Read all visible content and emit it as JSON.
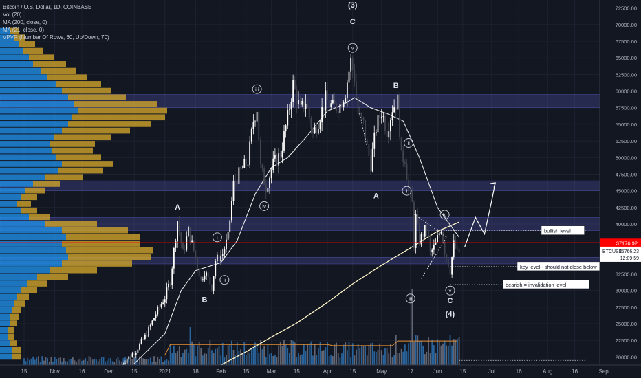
{
  "header": {
    "symbol_title": "Bitcoin / U.S. Dollar, 1D, COINBASE",
    "indicators": [
      "Vol (20)",
      "MA (200, close, 0)",
      "MA (21, close, 0)",
      "VPVR (Number Of Rows, 60, Up/Down, 70)"
    ]
  },
  "colors": {
    "background": "#131722",
    "up_candle": "#ffffff",
    "down_candle": "#434651",
    "price_line": "#ff0000",
    "vpvr_up": "#2196f3",
    "vpvr_down": "#d4a72c",
    "zone": "#5b5fc7",
    "ma_line": "#ffffff",
    "vol_ma": "#e58e32"
  },
  "chart_data": {
    "type": "candlestick",
    "y_axis": {
      "ticks": [
        20000,
        22500,
        25000,
        27500,
        30000,
        32500,
        35000,
        37500,
        40000,
        42500,
        45000,
        47500,
        50000,
        52500,
        55000,
        57500,
        60000,
        62500,
        65000,
        67500,
        70000,
        72500
      ],
      "tick_labels": [
        "20000.00",
        "22500.00",
        "25000.00",
        "27500.00",
        "30000.00",
        "32500.00",
        "35000.00",
        "37500.00",
        "40000.00",
        "42500.00",
        "45000.00",
        "47500.00",
        "50000.00",
        "52500.00",
        "55000.00",
        "57500.00",
        "60000.00",
        "62500.00",
        "65000.00",
        "67500.00",
        "70000.00",
        "72500.00"
      ],
      "range": [
        18800,
        73500
      ]
    },
    "x_axis": {
      "ticks": [
        {
          "label": "15",
          "date": "2020-10-15"
        },
        {
          "label": "Nov",
          "date": "2020-11-01"
        },
        {
          "label": "16",
          "date": "2020-11-16"
        },
        {
          "label": "Dec",
          "date": "2020-12-01"
        },
        {
          "label": "15",
          "date": "2020-12-15"
        },
        {
          "label": "2021",
          "date": "2021-01-01"
        },
        {
          "label": "18",
          "date": "2021-01-18"
        },
        {
          "label": "Feb",
          "date": "2021-02-01"
        },
        {
          "label": "15",
          "date": "2021-02-15"
        },
        {
          "label": "Mar",
          "date": "2021-03-01"
        },
        {
          "label": "15",
          "date": "2021-03-15"
        },
        {
          "label": "Apr",
          "date": "2021-04-01"
        },
        {
          "label": "15",
          "date": "2021-04-15"
        },
        {
          "label": "May",
          "date": "2021-05-01"
        },
        {
          "label": "17",
          "date": "2021-05-17"
        },
        {
          "label": "Jun",
          "date": "2021-06-01"
        },
        {
          "label": "15",
          "date": "2021-06-15"
        },
        {
          "label": "Jul",
          "date": "2021-07-01"
        },
        {
          "label": "16",
          "date": "2021-07-16"
        },
        {
          "label": "Aug",
          "date": "2021-08-01"
        },
        {
          "label": "16",
          "date": "2021-08-16"
        },
        {
          "label": "Sep",
          "date": "2021-09-01"
        }
      ]
    },
    "price_path": [
      {
        "date": "2020-12-08",
        "price": 18900
      },
      {
        "date": "2020-12-16",
        "price": 21000
      },
      {
        "date": "2020-12-22",
        "price": 23500
      },
      {
        "date": "2020-12-27",
        "price": 26500
      },
      {
        "date": "2021-01-01",
        "price": 29000
      },
      {
        "date": "2021-01-04",
        "price": 31500
      },
      {
        "date": "2021-01-08",
        "price": 40500
      },
      {
        "date": "2021-01-11",
        "price": 35500
      },
      {
        "date": "2021-01-14",
        "price": 39000
      },
      {
        "date": "2021-01-17",
        "price": 36000
      },
      {
        "date": "2021-01-21",
        "price": 31500
      },
      {
        "date": "2021-01-23",
        "price": 33000
      },
      {
        "date": "2021-01-27",
        "price": 30500
      },
      {
        "date": "2021-01-29",
        "price": 34500
      },
      {
        "date": "2021-02-02",
        "price": 35500
      },
      {
        "date": "2021-02-05",
        "price": 38000
      },
      {
        "date": "2021-02-08",
        "price": 46000
      },
      {
        "date": "2021-02-12",
        "price": 48000
      },
      {
        "date": "2021-02-16",
        "price": 49500
      },
      {
        "date": "2021-02-19",
        "price": 55500
      },
      {
        "date": "2021-02-21",
        "price": 57500
      },
      {
        "date": "2021-02-23",
        "price": 48500
      },
      {
        "date": "2021-02-26",
        "price": 45500
      },
      {
        "date": "2021-03-02",
        "price": 49000
      },
      {
        "date": "2021-03-06",
        "price": 50500
      },
      {
        "date": "2021-03-10",
        "price": 56000
      },
      {
        "date": "2021-03-13",
        "price": 61000
      },
      {
        "date": "2021-03-17",
        "price": 57000
      },
      {
        "date": "2021-03-20",
        "price": 58500
      },
      {
        "date": "2021-03-24",
        "price": 53500
      },
      {
        "date": "2021-03-27",
        "price": 55500
      },
      {
        "date": "2021-03-31",
        "price": 58800
      },
      {
        "date": "2021-04-04",
        "price": 57500
      },
      {
        "date": "2021-04-08",
        "price": 58000
      },
      {
        "date": "2021-04-11",
        "price": 60000
      },
      {
        "date": "2021-04-14",
        "price": 64500
      },
      {
        "date": "2021-04-16",
        "price": 62000
      },
      {
        "date": "2021-04-18",
        "price": 56500
      },
      {
        "date": "2021-04-21",
        "price": 55000
      },
      {
        "date": "2021-04-23",
        "price": 51500
      },
      {
        "date": "2021-04-25",
        "price": 49000
      },
      {
        "date": "2021-04-28",
        "price": 54500
      },
      {
        "date": "2021-05-01",
        "price": 57000
      },
      {
        "date": "2021-05-04",
        "price": 54000
      },
      {
        "date": "2021-05-07",
        "price": 57500
      },
      {
        "date": "2021-05-10",
        "price": 58500
      },
      {
        "date": "2021-05-12",
        "price": 50000
      },
      {
        "date": "2021-05-14",
        "price": 50000
      },
      {
        "date": "2021-05-16",
        "price": 45000
      },
      {
        "date": "2021-05-18",
        "price": 43000
      },
      {
        "date": "2021-05-19",
        "price": 37000
      },
      {
        "date": "2021-05-20",
        "price": 41000
      },
      {
        "date": "2021-05-22",
        "price": 37500
      },
      {
        "date": "2021-05-24",
        "price": 38500
      },
      {
        "date": "2021-05-26",
        "price": 39500
      },
      {
        "date": "2021-05-28",
        "price": 35500
      },
      {
        "date": "2021-05-31",
        "price": 37000
      },
      {
        "date": "2021-06-03",
        "price": 39500
      },
      {
        "date": "2021-06-05",
        "price": 36000
      },
      {
        "date": "2021-06-08",
        "price": 33000
      },
      {
        "date": "2021-06-10",
        "price": 37000
      },
      {
        "date": "2021-06-12",
        "price": 35600
      },
      {
        "date": "2021-06-13",
        "price": 35766
      }
    ],
    "ma200": [
      {
        "date": "2021-02-01",
        "price": 18800
      },
      {
        "date": "2021-02-15",
        "price": 20800
      },
      {
        "date": "2021-03-01",
        "price": 23000
      },
      {
        "date": "2021-03-15",
        "price": 25100
      },
      {
        "date": "2021-04-01",
        "price": 28200
      },
      {
        "date": "2021-04-15",
        "price": 31000
      },
      {
        "date": "2021-05-01",
        "price": 33800
      },
      {
        "date": "2021-05-17",
        "price": 36400
      },
      {
        "date": "2021-06-01",
        "price": 38900
      },
      {
        "date": "2021-06-13",
        "price": 40300
      }
    ],
    "ma21": [
      {
        "date": "2020-12-15",
        "price": 19000
      },
      {
        "date": "2021-01-01",
        "price": 23500
      },
      {
        "date": "2021-01-10",
        "price": 30000
      },
      {
        "date": "2021-01-18",
        "price": 33000
      },
      {
        "date": "2021-02-01",
        "price": 34200
      },
      {
        "date": "2021-02-10",
        "price": 37500
      },
      {
        "date": "2021-02-20",
        "price": 44500
      },
      {
        "date": "2021-03-01",
        "price": 48500
      },
      {
        "date": "2021-03-10",
        "price": 50000
      },
      {
        "date": "2021-03-20",
        "price": 53000
      },
      {
        "date": "2021-04-01",
        "price": 57000
      },
      {
        "date": "2021-04-10",
        "price": 58000
      },
      {
        "date": "2021-04-16",
        "price": 59000
      },
      {
        "date": "2021-04-25",
        "price": 57500
      },
      {
        "date": "2021-05-05",
        "price": 56500
      },
      {
        "date": "2021-05-13",
        "price": 55500
      },
      {
        "date": "2021-05-22",
        "price": 50000
      },
      {
        "date": "2021-06-01",
        "price": 42500
      },
      {
        "date": "2021-06-13",
        "price": 38000
      }
    ],
    "zones": [
      {
        "low": 57500,
        "high": 59500
      },
      {
        "low": 45000,
        "high": 46500
      },
      {
        "low": 39000,
        "high": 41000
      },
      {
        "low": 34000,
        "high": 35000
      }
    ],
    "current_price": {
      "value": 37176.92,
      "label": "37176.92"
    },
    "price_tag": {
      "symbol": "BTCUSD",
      "value": "35766.23",
      "countdown": "12:09:59",
      "price": 35766
    },
    "wave_labels": [
      {
        "text": "(3)",
        "date": "2021-04-15",
        "price": 73000
      },
      {
        "text": "C",
        "date": "2021-04-15",
        "price": 70500
      },
      {
        "text": "v",
        "date": "2021-04-15",
        "price": 66500,
        "circled": true
      },
      {
        "text": "B",
        "date": "2021-05-09",
        "price": 60900
      },
      {
        "text": "iii",
        "date": "2021-02-21",
        "price": 60300,
        "circled": true
      },
      {
        "text": "ii",
        "date": "2021-05-16",
        "price": 52200,
        "circled": true
      },
      {
        "text": "i",
        "date": "2021-05-15",
        "price": 45000,
        "circled": true
      },
      {
        "text": "A",
        "date": "2021-04-28",
        "price": 44300
      },
      {
        "text": "iv",
        "date": "2021-02-25",
        "price": 42700,
        "circled": true
      },
      {
        "text": "A",
        "date": "2021-01-08",
        "price": 42600
      },
      {
        "text": "i",
        "date": "2021-01-30",
        "price": 38000,
        "circled": true
      },
      {
        "text": "iv",
        "date": "2021-06-05",
        "price": 41400,
        "circled": true
      },
      {
        "text": "ii",
        "date": "2021-02-03",
        "price": 31600,
        "circled": true
      },
      {
        "text": "B",
        "date": "2021-01-23",
        "price": 28700
      },
      {
        "text": "iii",
        "date": "2021-05-17",
        "price": 28800,
        "circled": true
      },
      {
        "text": "v",
        "date": "2021-06-08",
        "price": 30000,
        "circled": true
      },
      {
        "text": "C",
        "date": "2021-06-08",
        "price": 28500
      },
      {
        "text": "(4)",
        "date": "2021-06-08",
        "price": 26500
      }
    ],
    "annotations": [
      {
        "text": "bullish level",
        "price": 39000,
        "line_from": "2021-06-03"
      },
      {
        "text": "key level - should not close below",
        "price": 33600,
        "line_from": "2021-06-08"
      },
      {
        "text": "bearish = invalidation level",
        "price": 30900,
        "line_from": "2021-06-08"
      }
    ],
    "projection": [
      {
        "date": "2021-06-16",
        "price": 36500
      },
      {
        "date": "2021-06-22",
        "price": 41000
      },
      {
        "date": "2021-06-27",
        "price": 38500
      },
      {
        "date": "2021-07-01",
        "price": 43500
      },
      {
        "date": "2021-07-03",
        "price": 46200
      }
    ],
    "vpvr": {
      "rows": [
        {
          "low": 68500,
          "high": 69500,
          "up": 0.05,
          "down": 0.04
        },
        {
          "low": 67500,
          "high": 68500,
          "up": 0.07,
          "down": 0.05
        },
        {
          "low": 66500,
          "high": 67500,
          "up": 0.09,
          "down": 0.08
        },
        {
          "low": 65500,
          "high": 66500,
          "up": 0.11,
          "down": 0.1
        },
        {
          "low": 64500,
          "high": 65500,
          "up": 0.14,
          "down": 0.12
        },
        {
          "low": 63500,
          "high": 64500,
          "up": 0.16,
          "down": 0.16
        },
        {
          "low": 62500,
          "high": 63500,
          "up": 0.2,
          "down": 0.17
        },
        {
          "low": 61500,
          "high": 62500,
          "up": 0.23,
          "down": 0.19
        },
        {
          "low": 60500,
          "high": 61500,
          "up": 0.27,
          "down": 0.22
        },
        {
          "low": 59500,
          "high": 60500,
          "up": 0.3,
          "down": 0.24
        },
        {
          "low": 58500,
          "high": 59500,
          "up": 0.33,
          "down": 0.28
        },
        {
          "low": 57500,
          "high": 58500,
          "up": 0.36,
          "down": 0.4
        },
        {
          "low": 56500,
          "high": 57500,
          "up": 0.38,
          "down": 0.43
        },
        {
          "low": 55500,
          "high": 56500,
          "up": 0.35,
          "down": 0.45
        },
        {
          "low": 54500,
          "high": 55500,
          "up": 0.33,
          "down": 0.4
        },
        {
          "low": 53500,
          "high": 54500,
          "up": 0.3,
          "down": 0.33
        },
        {
          "low": 52500,
          "high": 53500,
          "up": 0.26,
          "down": 0.28
        },
        {
          "low": 51500,
          "high": 52500,
          "up": 0.24,
          "down": 0.22
        },
        {
          "low": 50500,
          "high": 51500,
          "up": 0.25,
          "down": 0.2
        },
        {
          "low": 49500,
          "high": 50500,
          "up": 0.27,
          "down": 0.22
        },
        {
          "low": 48500,
          "high": 49500,
          "up": 0.3,
          "down": 0.25
        },
        {
          "low": 47500,
          "high": 48500,
          "up": 0.28,
          "down": 0.22
        },
        {
          "low": 46500,
          "high": 47500,
          "up": 0.22,
          "down": 0.18
        },
        {
          "low": 45500,
          "high": 46500,
          "up": 0.16,
          "down": 0.13
        },
        {
          "low": 44500,
          "high": 45500,
          "up": 0.12,
          "down": 0.1
        },
        {
          "low": 43500,
          "high": 44500,
          "up": 0.1,
          "down": 0.08
        },
        {
          "low": 42500,
          "high": 43500,
          "up": 0.08,
          "down": 0.07
        },
        {
          "low": 41500,
          "high": 42500,
          "up": 0.1,
          "down": 0.08
        },
        {
          "low": 40500,
          "high": 41500,
          "up": 0.14,
          "down": 0.1
        },
        {
          "low": 39500,
          "high": 40500,
          "up": 0.22,
          "down": 0.25
        },
        {
          "low": 38500,
          "high": 39500,
          "up": 0.3,
          "down": 0.32
        },
        {
          "low": 37500,
          "high": 38500,
          "up": 0.32,
          "down": 0.36
        },
        {
          "low": 36500,
          "high": 37500,
          "up": 0.3,
          "down": 0.38
        },
        {
          "low": 35500,
          "high": 36500,
          "up": 0.32,
          "down": 0.42
        },
        {
          "low": 34500,
          "high": 35500,
          "up": 0.33,
          "down": 0.4
        },
        {
          "low": 33500,
          "high": 34500,
          "up": 0.3,
          "down": 0.34
        },
        {
          "low": 32500,
          "high": 33500,
          "up": 0.24,
          "down": 0.23
        },
        {
          "low": 31500,
          "high": 32500,
          "up": 0.18,
          "down": 0.15
        },
        {
          "low": 30500,
          "high": 31500,
          "up": 0.13,
          "down": 0.1
        },
        {
          "low": 29500,
          "high": 30500,
          "up": 0.1,
          "down": 0.08
        },
        {
          "low": 28500,
          "high": 29500,
          "up": 0.08,
          "down": 0.06
        },
        {
          "low": 27500,
          "high": 28500,
          "up": 0.07,
          "down": 0.05
        },
        {
          "low": 26500,
          "high": 27500,
          "up": 0.06,
          "down": 0.04
        },
        {
          "low": 25500,
          "high": 26500,
          "up": 0.05,
          "down": 0.04
        },
        {
          "low": 24500,
          "high": 25500,
          "up": 0.05,
          "down": 0.03
        },
        {
          "low": 23500,
          "high": 24500,
          "up": 0.04,
          "down": 0.03
        },
        {
          "low": 22500,
          "high": 23500,
          "up": 0.04,
          "down": 0.03
        },
        {
          "low": 21500,
          "high": 22500,
          "up": 0.05,
          "down": 0.03
        },
        {
          "low": 20500,
          "high": 21500,
          "up": 0.06,
          "down": 0.04
        },
        {
          "low": 19500,
          "high": 20500,
          "up": 0.06,
          "down": 0.04
        }
      ]
    }
  }
}
